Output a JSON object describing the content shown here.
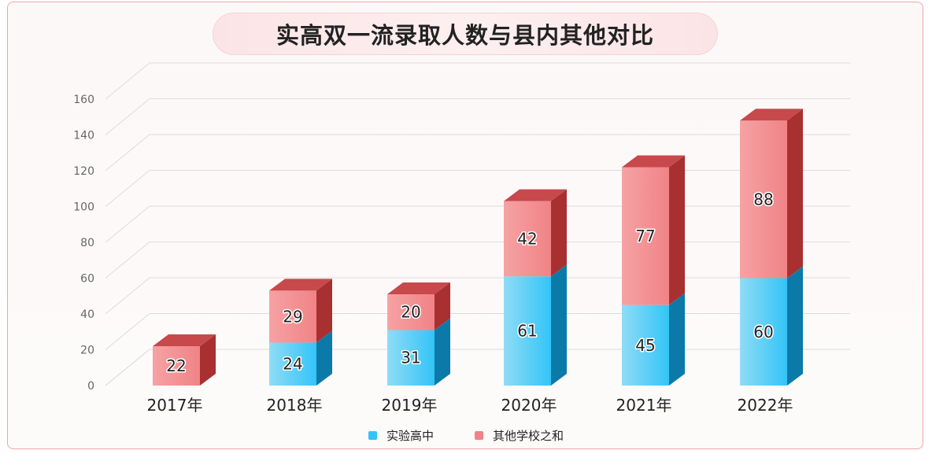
{
  "title": "实高双一流录取人数与县内其他对比",
  "chart_data": {
    "type": "bar",
    "stacked": true,
    "categories": [
      "2017年",
      "2018年",
      "2019年",
      "2020年",
      "2021年",
      "2022年"
    ],
    "series": [
      {
        "name": "实验高中",
        "values": [
          0,
          24,
          31,
          61,
          45,
          60
        ],
        "color": "#33c4f7",
        "side": "#0b7aa8",
        "top": "#9ddcf3"
      },
      {
        "name": "其他学校之和",
        "values": [
          22,
          29,
          20,
          42,
          77,
          88
        ],
        "color": "#f08386",
        "side": "#a83030",
        "top": "#c2393d"
      }
    ],
    "y_ticks": [
      "0",
      "20",
      "40",
      "60",
      "80",
      "100",
      "120",
      "140",
      "160"
    ],
    "ylim": [
      0,
      160
    ],
    "grid": true,
    "legend_position": "bottom-center"
  }
}
